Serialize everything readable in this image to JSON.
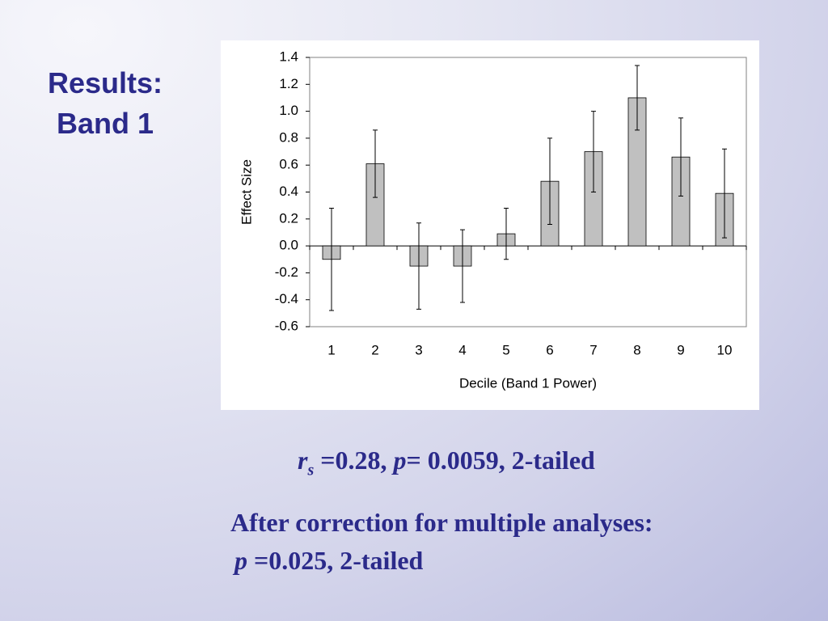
{
  "slide": {
    "title": [
      "Results:",
      "Band 1"
    ],
    "stat_line": [
      "r",
      "s",
      " =0.28, ",
      "p",
      "= 0.0059, 2-tailed"
    ],
    "note_lines": [
      "After correction for multiple analyses:",
      [
        "p",
        " =0.025, 2-tailed"
      ]
    ]
  },
  "chart_data": {
    "type": "bar",
    "x_label": "Decile (Band 1 Power)",
    "y_label": "Effect Size",
    "categories": [
      "1",
      "2",
      "3",
      "4",
      "5",
      "6",
      "7",
      "8",
      "9",
      "10"
    ],
    "values": [
      -0.1,
      0.61,
      -0.15,
      -0.15,
      0.09,
      0.48,
      0.7,
      1.1,
      0.66,
      0.39
    ],
    "errors": [
      0.38,
      0.25,
      0.32,
      0.27,
      0.19,
      0.32,
      0.3,
      0.24,
      0.29,
      0.33
    ],
    "color": "#c0c0c0",
    "ylim": [
      -0.6,
      1.4
    ],
    "yticks": [
      -0.6,
      -0.4,
      -0.2,
      {
        "value": 0,
        "label": "0.0"
      },
      0.2,
      0.4,
      0.6,
      0.8,
      {
        "value": 1,
        "label": "1.0"
      },
      1.2,
      1.4
    ],
    "grid": false
  }
}
